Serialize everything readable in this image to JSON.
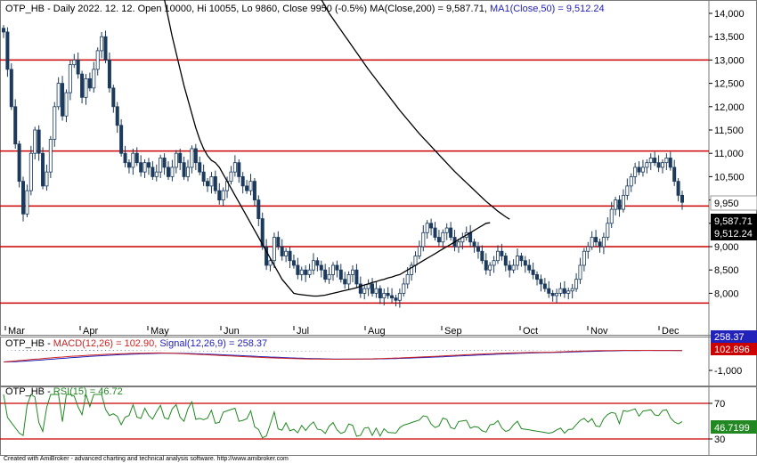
{
  "colors": {
    "up": "#ffffff",
    "down": "#1c3a5c",
    "support": "#cc0000",
    "ma": "#000000",
    "macd": "#cc2222",
    "signal": "#2222bb",
    "hist": "#203a6a",
    "rsi": "#228822",
    "rsi_band": "#cc0000"
  },
  "chart_data": [
    {
      "type": "candlestick",
      "title": {
        "symbol": "OTP_HB",
        "info": "- Daily 2022. 12. 12. Open 10000, Hi 10055, Lo 9860, Close 9950 (-0.5%)",
        "ma_label": "MA(Close,200) = 9,587.71,",
        "ma1_label": "MA1(Close,50) = 9,512.24"
      },
      "ylim": [
        7700,
        14300
      ],
      "y_ticks": [
        "14,000",
        "13,500",
        "13,000",
        "12,500",
        "12,000",
        "11,500",
        "11,000",
        "10,500",
        "10,000",
        "9,500",
        "9,000",
        "8,500",
        "8,000"
      ],
      "x_labels": [
        "Mar",
        "Apr",
        "May",
        "Jun",
        "Jul",
        "Aug",
        "Sep",
        "Oct",
        "Nov",
        "Dec"
      ],
      "horizontal_lines": [
        13000,
        11050,
        9870,
        9000,
        7790
      ],
      "last_value_labels": [
        "9,950",
        "9,587.71",
        "9,512.24"
      ],
      "close": [
        13600,
        12800,
        12000,
        11200,
        10400,
        9700,
        10200,
        11000,
        11500,
        11000,
        10300,
        10600,
        11300,
        12000,
        12500,
        11800,
        12300,
        12900,
        13000,
        12700,
        12200,
        12600,
        12400,
        12800,
        13200,
        13500,
        13000,
        12400,
        12000,
        11600,
        11000,
        10800,
        10700,
        11000,
        10800,
        10600,
        10800,
        10700,
        10500,
        10600,
        10900,
        10700,
        10500,
        10700,
        11000,
        10800,
        10500,
        10700,
        11100,
        10800,
        10600,
        10400,
        10300,
        10500,
        10200,
        10000,
        10200,
        10400,
        10600,
        10800,
        10500,
        10300,
        10200,
        10400,
        10000,
        9600,
        9000,
        8600,
        8700,
        9200,
        9000,
        8800,
        8900,
        8700,
        8600,
        8400,
        8500,
        8400,
        8500,
        8700,
        8600,
        8500,
        8300,
        8400,
        8600,
        8500,
        8300,
        8200,
        8400,
        8500,
        8200,
        8000,
        8100,
        8200,
        8000,
        8100,
        7900,
        8000,
        7950,
        7900,
        7850,
        8000,
        8200,
        8400,
        8600,
        8800,
        9000,
        9300,
        9500,
        9400,
        9200,
        9100,
        9300,
        9400,
        9200,
        9000,
        9100,
        9200,
        9300,
        9100,
        9000,
        8900,
        8700,
        8500,
        8600,
        8700,
        8900,
        8800,
        8600,
        8500,
        8600,
        8800,
        8700,
        8600,
        8500,
        8400,
        8300,
        8200,
        8100,
        8000,
        7950,
        8000,
        8100,
        8000,
        8050,
        8100,
        8300,
        8600,
        8900,
        9000,
        9200,
        9100,
        9000,
        9200,
        9500,
        9800,
        10000,
        9800,
        10100,
        10300,
        10500,
        10700,
        10600,
        10700,
        10800,
        10900,
        10800,
        10700,
        10800,
        10900,
        10700,
        10400,
        10100,
        9950
      ],
      "ma200": [
        null,
        null,
        null,
        null,
        null,
        null,
        null,
        null,
        null,
        null,
        null,
        null,
        null,
        null,
        null,
        null,
        null,
        null,
        null,
        null,
        null,
        null,
        null,
        null,
        null,
        null,
        null,
        null,
        null,
        null,
        null,
        null,
        null,
        null,
        null,
        null,
        null,
        null,
        null,
        null,
        null,
        null,
        null,
        null,
        null,
        null,
        null,
        null,
        null,
        null,
        null,
        null,
        null,
        null,
        null,
        null,
        null,
        null,
        null,
        null,
        null,
        null,
        null,
        null,
        null,
        null,
        null,
        null,
        null,
        null,
        null,
        null,
        null,
        null,
        null,
        null,
        null,
        null,
        null,
        null,
        null,
        14300,
        14150,
        14000,
        13880,
        13760,
        13640,
        13520,
        13400,
        13280,
        13160,
        13040,
        12920,
        12800,
        12690,
        12580,
        12470,
        12360,
        12250,
        12140,
        12030,
        11920,
        11820,
        11720,
        11620,
        11520,
        11420,
        11330,
        11240,
        11150,
        11060,
        10970,
        10880,
        10790,
        10700,
        10610,
        10530,
        10450,
        10370,
        10290,
        10210,
        10130,
        10050,
        9970,
        9900,
        9830,
        9760,
        9700,
        9640,
        9587.71
      ],
      "ma50": [
        null,
        null,
        null,
        null,
        null,
        null,
        null,
        null,
        null,
        null,
        null,
        null,
        null,
        null,
        null,
        null,
        null,
        null,
        null,
        null,
        null,
        null,
        null,
        null,
        null,
        null,
        null,
        null,
        null,
        null,
        null,
        null,
        null,
        null,
        null,
        null,
        null,
        null,
        null,
        null,
        null,
        14300,
        13900,
        13500,
        13150,
        12800,
        12450,
        12150,
        11850,
        11550,
        11300,
        11100,
        10950,
        10850,
        10800,
        10700,
        10550,
        10400,
        10250,
        10100,
        9950,
        9800,
        9650,
        9500,
        9350,
        9200,
        9050,
        8900,
        8750,
        8600,
        8450,
        8300,
        8200,
        8100,
        8000,
        7980,
        7970,
        7960,
        7950,
        7940,
        7940,
        7950,
        7960,
        7980,
        8000,
        8020,
        8040,
        8060,
        8080,
        8100,
        8120,
        8150,
        8180,
        8200,
        8230,
        8250,
        8280,
        8300,
        8330,
        8350,
        8380,
        8400,
        8450,
        8500,
        8550,
        8600,
        8650,
        8700,
        8750,
        8800,
        8850,
        8900,
        8950,
        9000,
        9050,
        9100,
        9150,
        9200,
        9250,
        9300,
        9350,
        9400,
        9450,
        9500,
        9512.24
      ]
    },
    {
      "type": "line",
      "title": {
        "symbol": "OTP_HB",
        "macd_label": "MACD(12,26) = 102.90,",
        "signal_label": "Signal(12,26,9) = 258.37"
      },
      "y_ticks": [
        "-1,000"
      ],
      "last_value_labels": [
        "258.37",
        "102.896"
      ]
    },
    {
      "type": "line",
      "title": {
        "symbol": "OTP_HB",
        "rsi_label": "RSI(15) = 46.72"
      },
      "y_ticks": [
        "70",
        "30"
      ],
      "last_value_labels": [
        "46.7199"
      ]
    }
  ],
  "footer": "Created with AmiBroker - advanced charting and technical analysis software. http://www.amibroker.com"
}
